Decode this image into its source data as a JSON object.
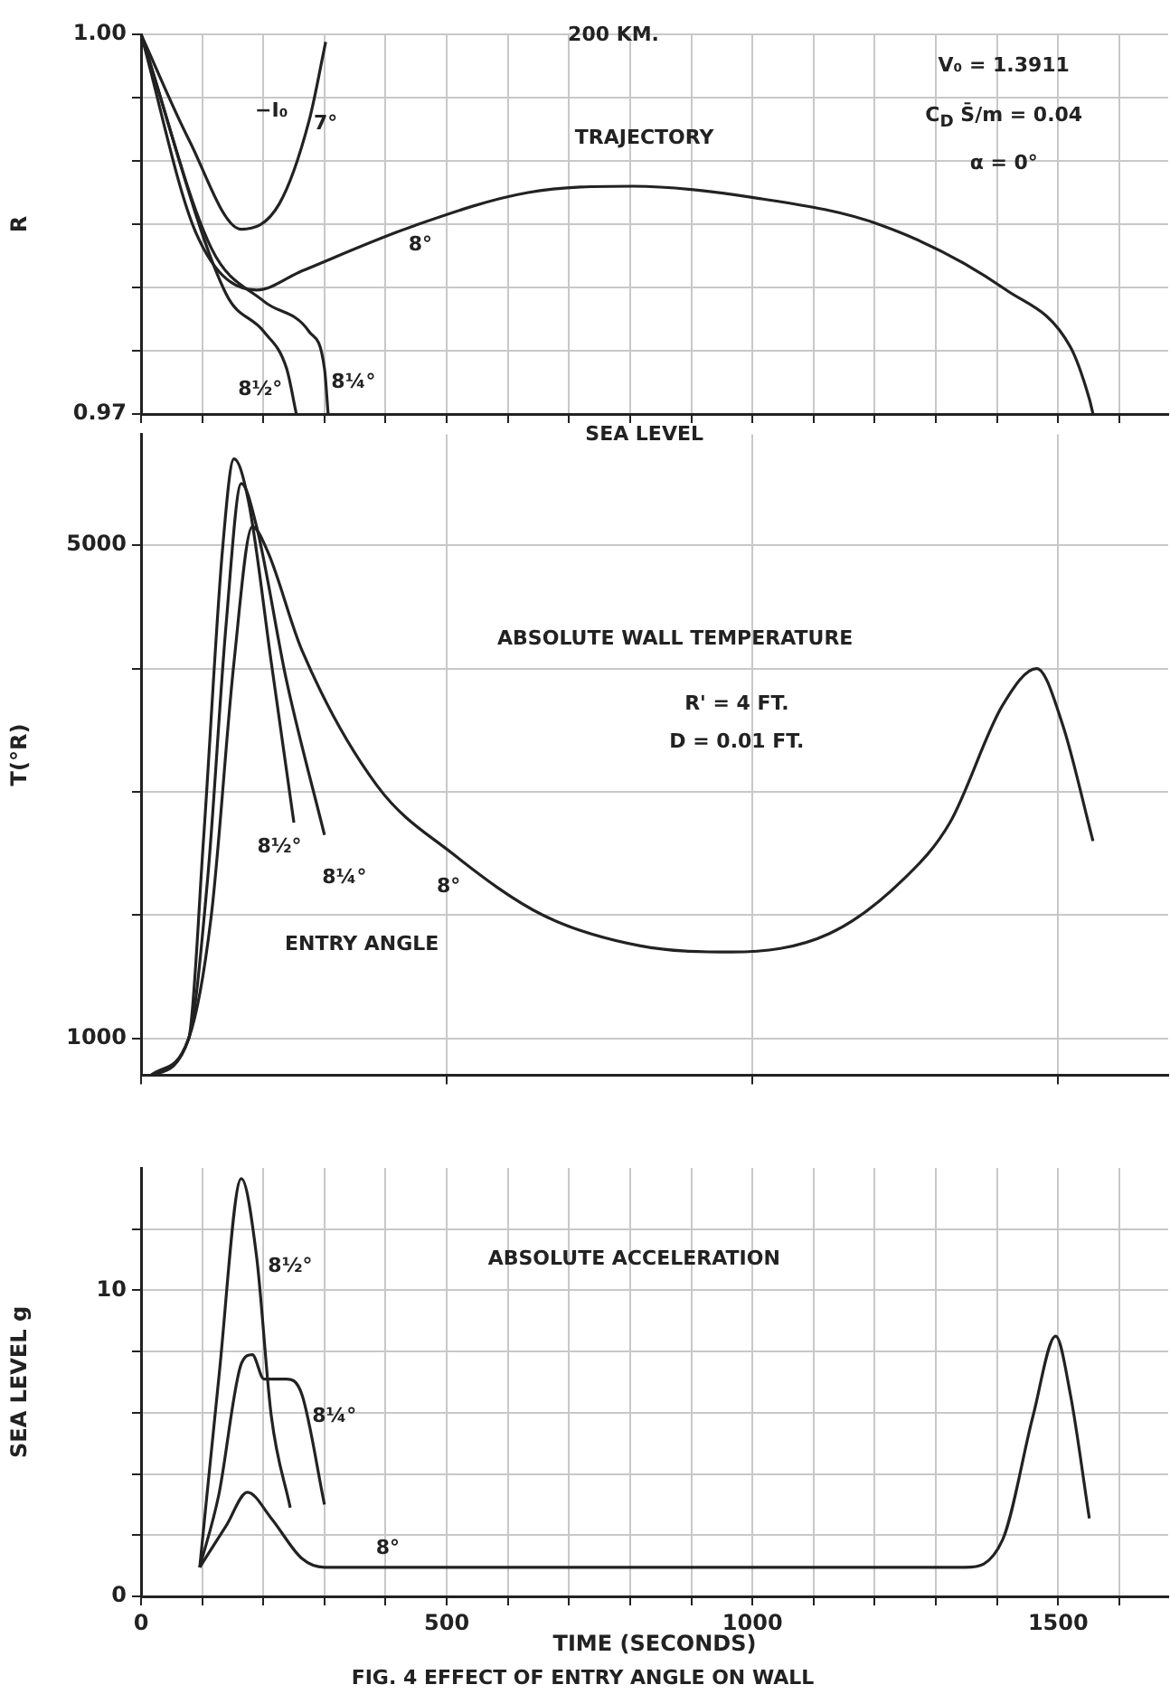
{
  "chart_data": [
    {
      "type": "line",
      "title": "TRAJECTORY",
      "ylabel": "R",
      "xlim": [
        0,
        1680
      ],
      "ylim": [
        0.97,
        1.0
      ],
      "xticks": [
        {
          "value": 0,
          "label": null
        },
        {
          "value": 100,
          "label": null
        },
        {
          "value": 200,
          "label": null
        },
        {
          "value": 300,
          "label": null
        },
        {
          "value": 400,
          "label": null
        },
        {
          "value": 500,
          "label": null
        },
        {
          "value": 600,
          "label": null
        },
        {
          "value": 700,
          "label": null
        },
        {
          "value": 800,
          "label": null
        },
        {
          "value": 900,
          "label": null
        },
        {
          "value": 1000,
          "label": null
        },
        {
          "value": 1100,
          "label": null
        },
        {
          "value": 1200,
          "label": null
        },
        {
          "value": 1300,
          "label": null
        },
        {
          "value": 1400,
          "label": null
        },
        {
          "value": 1500,
          "label": null
        },
        {
          "value": 1600,
          "label": null
        }
      ],
      "yticks": [
        {
          "value": 0.97,
          "label": "0.97"
        },
        {
          "value": 0.975,
          "label": null
        },
        {
          "value": 0.98,
          "label": null
        },
        {
          "value": 0.985,
          "label": null
        },
        {
          "value": 0.99,
          "label": null
        },
        {
          "value": 0.995,
          "label": null
        },
        {
          "value": 1.0,
          "label": "1.00"
        }
      ],
      "tick_labels": "y",
      "grid": true,
      "legend": false,
      "marker": "none",
      "line_style": "solid",
      "annotations": [
        "200 KM.",
        "SEA LEVEL",
        "V₀ = 1.3911",
        "C$_{D}$ S̄/m = 0.04",
        "α = 0°",
        "−I₀"
      ],
      "series": [
        {
          "name": "7°",
          "color": "#222222",
          "x": [
            0,
            78,
            164,
            226,
            275,
            302
          ],
          "values": [
            1.0,
            0.9917,
            0.9846,
            0.9866,
            0.9932,
            0.9994
          ]
        },
        {
          "name": "8°",
          "color": "#222222",
          "x": [
            0,
            90,
            189,
            263,
            448,
            633,
            805,
            1002,
            1212,
            1415,
            1520,
            1551,
            1557
          ],
          "values": [
            1.0,
            0.9843,
            0.9798,
            0.9813,
            0.9849,
            0.9875,
            0.988,
            0.9871,
            0.9849,
            0.9798,
            0.9753,
            0.9712,
            0.97
          ]
        },
        {
          "name": "8¼°",
          "color": "#222222",
          "x": [
            0,
            115,
            201,
            275,
            300,
            306
          ],
          "values": [
            1.0,
            0.9831,
            0.9789,
            0.9765,
            0.9736,
            0.97
          ]
        },
        {
          "name": "8½°",
          "color": "#222222",
          "x": [
            0,
            139,
            201,
            238,
            254
          ],
          "values": [
            1.0,
            0.9795,
            0.9765,
            0.9736,
            0.97
          ]
        }
      ]
    },
    {
      "type": "line",
      "title": "ABSOLUTE WALL TEMPERATURE",
      "ylabel": "T(°R)",
      "xlim": [
        0,
        1680
      ],
      "ylim": [
        700,
        5900
      ],
      "xticks": [
        {
          "value": 0,
          "label": null
        },
        {
          "value": 500,
          "label": null
        },
        {
          "value": 1000,
          "label": null
        },
        {
          "value": 1500,
          "label": null
        }
      ],
      "yticks": [
        {
          "value": 1000,
          "label": "1000"
        },
        {
          "value": 2000,
          "label": null
        },
        {
          "value": 3000,
          "label": null
        },
        {
          "value": 4000,
          "label": null
        },
        {
          "value": 5000,
          "label": "5000"
        }
      ],
      "tick_labels": "y",
      "grid": true,
      "legend": false,
      "marker": "none",
      "line_style": "solid",
      "annotations": [
        "R' = 4 FT.",
        "D = 0.01 FT.",
        "ENTRY ANGLE"
      ],
      "series": [
        {
          "name": "8°",
          "color": "#222222",
          "x": [
            16,
            78,
            115,
            152,
            182,
            207,
            263,
            386,
            509,
            657,
            817,
            965,
            1126,
            1249,
            1323,
            1409,
            1465,
            1507,
            1557
          ],
          "values": [
            700,
            1000,
            2000,
            4050,
            5150,
            4950,
            4150,
            3050,
            2500,
            2000,
            1750,
            1700,
            1850,
            2300,
            2750,
            3700,
            4000,
            3550,
            2600
          ]
        },
        {
          "name": "8¼°",
          "color": "#222222",
          "x": [
            16,
            78,
            109,
            139,
            164,
            189,
            238,
            300
          ],
          "values": [
            700,
            1000,
            2300,
            4350,
            5500,
            5150,
            3900,
            2650
          ]
        },
        {
          "name": "8½°",
          "color": "#222222",
          "x": [
            16,
            78,
            102,
            133,
            152,
            176,
            213,
            250
          ],
          "values": [
            700,
            1000,
            2600,
            4950,
            5700,
            5350,
            4050,
            2750
          ]
        }
      ]
    },
    {
      "type": "line",
      "title": "ABSOLUTE ACCELERATION",
      "xlabel": "TIME (SECONDS)",
      "ylabel": "SEA LEVEL g",
      "xlim": [
        0,
        1680
      ],
      "ylim": [
        0,
        14
      ],
      "xticks": [
        0,
        {
          "value": 100,
          "label": null
        },
        {
          "value": 200,
          "label": null
        },
        {
          "value": 300,
          "label": null
        },
        {
          "value": 400,
          "label": null
        },
        500,
        {
          "value": 600,
          "label": null
        },
        {
          "value": 700,
          "label": null
        },
        {
          "value": 800,
          "label": null
        },
        {
          "value": 900,
          "label": null
        },
        1000,
        {
          "value": 1100,
          "label": null
        },
        {
          "value": 1200,
          "label": null
        },
        {
          "value": 1300,
          "label": null
        },
        {
          "value": 1400,
          "label": null
        },
        1500,
        {
          "value": 1600,
          "label": null
        }
      ],
      "yticks": [
        0,
        {
          "value": 2,
          "label": null
        },
        {
          "value": 4,
          "label": null
        },
        {
          "value": 6,
          "label": null
        },
        {
          "value": 8,
          "label": null
        },
        10,
        {
          "value": 12,
          "label": null
        }
      ],
      "grid": true,
      "legend": false,
      "marker": "none",
      "line_style": "solid",
      "annotations": [
        "FIG. 4  EFFECT OF ENTRY ANGLE ON WALL"
      ],
      "series": [
        {
          "name": "8°",
          "color": "#222222",
          "x": [
            96,
            139,
            174,
            213,
            263,
            300,
            1348,
            1409,
            1459,
            1496,
            1520,
            1551
          ],
          "values": [
            0.95,
            2.3,
            3.4,
            2.55,
            1.24,
            0.95,
            0.95,
            1.84,
            5.9,
            8.5,
            6.6,
            2.55
          ]
        },
        {
          "name": "8¼°",
          "color": "#222222",
          "x": [
            96,
            127,
            164,
            182,
            201,
            238,
            263,
            300
          ],
          "values": [
            0.95,
            3.3,
            7.6,
            7.9,
            7.1,
            7.1,
            6.6,
            3.0
          ]
        },
        {
          "name": "8½°",
          "color": "#222222",
          "x": [
            96,
            127,
            164,
            189,
            213,
            244
          ],
          "values": [
            0.95,
            7.1,
            13.65,
            11.1,
            5.9,
            2.9
          ]
        }
      ]
    }
  ]
}
